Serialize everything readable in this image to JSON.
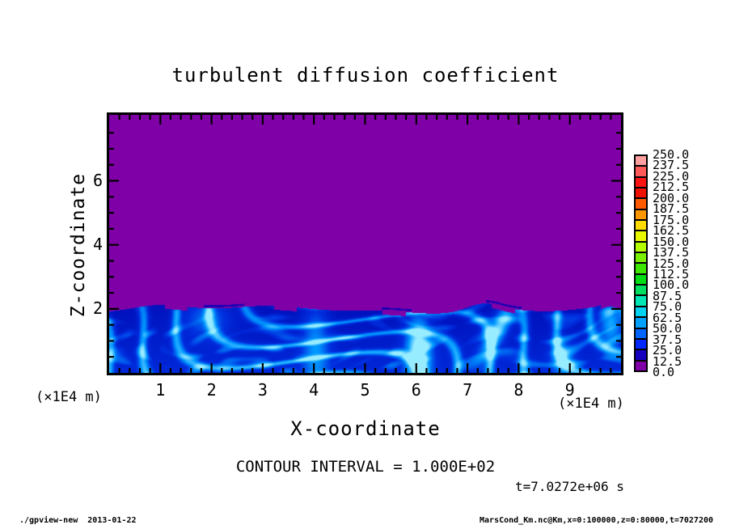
{
  "title": "turbulent diffusion coefficient",
  "axes": {
    "xlabel": "X-coordinate",
    "ylabel": "Z-coordinate",
    "x_unit_label_left": "(×1E4 m)",
    "x_unit_label_right": "(×1E4 m)",
    "x_tick_labels": [
      "1",
      "2",
      "3",
      "4",
      "5",
      "6",
      "7",
      "8",
      "9"
    ],
    "z_tick_labels": [
      "2",
      "4",
      "6"
    ]
  },
  "annotations": {
    "contour_interval": "CONTOUR INTERVAL = 1.000E+02",
    "time_label": "t=7.0272e+06 s"
  },
  "footer": {
    "left": "./gpview-new  2013-01-22",
    "right": "MarsCond_Km.nc@Km,x=0:100000,z=0:80000,t=7027200"
  },
  "chart_data": {
    "type": "heatmap",
    "title": "turbulent diffusion coefficient",
    "xlabel": "X-coordinate",
    "ylabel": "Z-coordinate",
    "x_units": "×1E4 m",
    "z_units": "×1E4 m",
    "xlim": [
      0,
      10
    ],
    "zlim": [
      0,
      8.06
    ],
    "x_major_ticks": [
      1,
      2,
      3,
      4,
      5,
      6,
      7,
      8,
      9
    ],
    "x_minor_step": 0.2,
    "z_major_ticks": [
      2,
      4,
      6
    ],
    "z_minor_step": 0.5,
    "grid": false,
    "contour_interval": 100.0,
    "time_seconds": 7027200,
    "colorbar": {
      "position": "right",
      "levels_bottom_to_top": [
        0.0,
        12.5,
        25.0,
        37.5,
        50.0,
        62.5,
        75.0,
        87.5,
        100.0,
        112.5,
        125.0,
        137.5,
        150.0,
        162.5,
        175.0,
        187.5,
        200.0,
        212.5,
        225.0,
        237.5,
        250.0
      ],
      "labels_top_to_bottom": [
        "250.0",
        "237.5",
        "225.0",
        "212.5",
        "200.0",
        "187.5",
        "175.0",
        "162.5",
        "150.0",
        "137.5",
        "125.0",
        "112.5",
        "100.0",
        "87.5",
        "75.0",
        "62.5",
        "50.0",
        "37.5",
        "25.0",
        "12.5",
        "0.0"
      ],
      "colors_top_to_bottom": [
        "#ff9f9f",
        "#ff5a5a",
        "#ff1414",
        "#f01000",
        "#ff5a00",
        "#ff9600",
        "#ffdc00",
        "#e8f800",
        "#b4ff00",
        "#78f000",
        "#3ce600",
        "#00dc14",
        "#00e060",
        "#00e6b4",
        "#00d2f0",
        "#00a0ff",
        "#0064ff",
        "#0028ff",
        "#1400be",
        "#8000a8"
      ]
    },
    "field_summary": {
      "upper_region": {
        "z_range": [
          2,
          8.06
        ],
        "value_range": [
          0,
          12.5
        ],
        "color": "#8000a8",
        "description": "quiescent region, diffusion coefficient near 0"
      },
      "lower_region": {
        "z_range": [
          0,
          2
        ],
        "value_range": [
          12.5,
          100
        ],
        "description": "turbulent boundary layer: dark blue eddies with brighter blue swirls and cyan mixing filaments; wavy interface near z=2 with plumes around x=6 and x=7.3"
      }
    }
  }
}
